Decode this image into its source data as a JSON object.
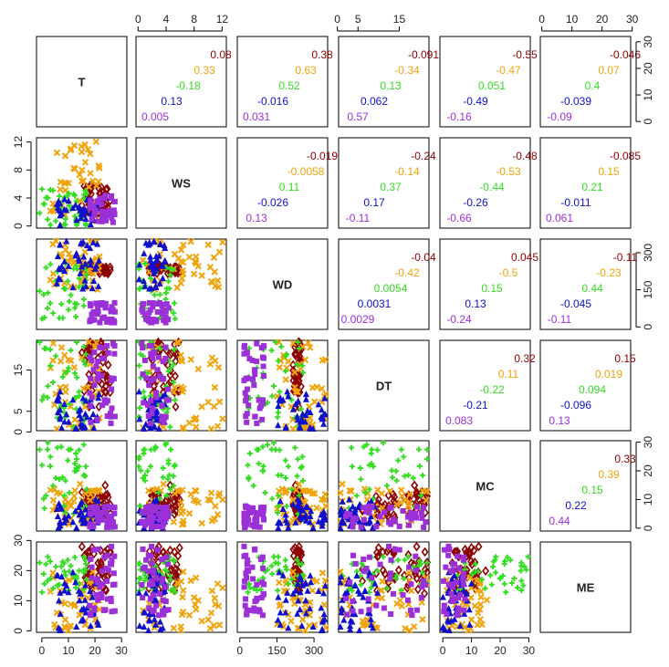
{
  "chart_data": {
    "type": "scatter-matrix",
    "variables": [
      "T",
      "WS",
      "WD",
      "DT",
      "MC",
      "ME"
    ],
    "axis_ranges": {
      "T": [
        -2,
        32
      ],
      "WS": [
        -0.3,
        12.6
      ],
      "WD": [
        -10,
        355
      ],
      "DT": [
        0.3,
        22.2
      ],
      "MC": [
        -1,
        30.5
      ],
      "ME": [
        -0.5,
        29.5
      ]
    },
    "ticks": {
      "T": {
        "values": [
          0,
          10,
          20,
          30
        ],
        "labels": [
          "0",
          "10",
          "20",
          "30"
        ]
      },
      "WS": {
        "values": [
          0,
          4,
          8,
          12
        ],
        "labels": [
          "0",
          "4",
          "8",
          "12"
        ]
      },
      "WD": {
        "values": [
          0,
          150,
          300
        ],
        "labels": [
          "0",
          "150",
          "300"
        ]
      },
      "DT": {
        "values": [
          0,
          5,
          15
        ],
        "labels": [
          "0",
          "5",
          "15"
        ]
      },
      "MC": {
        "values": [
          0,
          10,
          20,
          30
        ],
        "labels": [
          "0",
          "10",
          "20",
          "30"
        ]
      },
      "ME": {
        "values": [
          0,
          10,
          20,
          30
        ],
        "labels": [
          "0",
          "10",
          "20",
          "30"
        ]
      }
    },
    "groups": [
      {
        "color": "#8b0000",
        "marker": "diamond-open"
      },
      {
        "color": "#f0a30a",
        "marker": "x"
      },
      {
        "color": "#33dd22",
        "marker": "plus"
      },
      {
        "color": "#1010cc",
        "marker": "triangle"
      },
      {
        "color": "#9b30d9",
        "marker": "square"
      }
    ],
    "correlations": [
      {
        "row": 0,
        "col": 1,
        "values": [
          "0.08",
          "0.33",
          "-0.18",
          "0.13",
          "0.005"
        ]
      },
      {
        "row": 0,
        "col": 2,
        "values": [
          "0.38",
          "0.63",
          "0.52",
          "-0.016",
          "0.031"
        ]
      },
      {
        "row": 0,
        "col": 3,
        "values": [
          "-0.091",
          "-0.34",
          "0.13",
          "0.062",
          "0.57"
        ]
      },
      {
        "row": 0,
        "col": 4,
        "values": [
          "-0.55",
          "-0.47",
          "0.051",
          "-0.49",
          "-0.16"
        ]
      },
      {
        "row": 0,
        "col": 5,
        "values": [
          "-0.046",
          "0.07",
          "0.4",
          "-0.039",
          "-0.09"
        ]
      },
      {
        "row": 1,
        "col": 2,
        "values": [
          "-0.019",
          "-0.0058",
          "0.11",
          "-0.026",
          "0.13"
        ]
      },
      {
        "row": 1,
        "col": 3,
        "values": [
          "-0.24",
          "-0.14",
          "0.37",
          "0.17",
          "-0.11"
        ]
      },
      {
        "row": 1,
        "col": 4,
        "values": [
          "-0.48",
          "-0.53",
          "-0.44",
          "-0.26",
          "-0.66"
        ]
      },
      {
        "row": 1,
        "col": 5,
        "values": [
          "-0.085",
          "0.15",
          "0.21",
          "-0.011",
          "0.061"
        ]
      },
      {
        "row": 2,
        "col": 3,
        "values": [
          "-0.04",
          "-0.42",
          "0.0054",
          "0.0031",
          "0.0029"
        ]
      },
      {
        "row": 2,
        "col": 4,
        "values": [
          "0.045",
          "-0.5",
          "0.15",
          "0.13",
          "-0.24"
        ]
      },
      {
        "row": 2,
        "col": 5,
        "values": [
          "-0.11",
          "-0.23",
          "0.44",
          "-0.045",
          "-0.11"
        ]
      },
      {
        "row": 3,
        "col": 4,
        "values": [
          "0.32",
          "0.11",
          "-0.22",
          "-0.21",
          "0.083"
        ]
      },
      {
        "row": 3,
        "col": 5,
        "values": [
          "0.15",
          "0.019",
          "0.094",
          "-0.096",
          "0.13"
        ]
      },
      {
        "row": 4,
        "col": 5,
        "values": [
          "0.33",
          "0.39",
          "0.15",
          "0.22",
          "0.44"
        ]
      }
    ],
    "points": [
      {
        "group": 0,
        "n": 45,
        "T": [
          15,
          26
        ],
        "WS": [
          1.5,
          6
        ],
        "WD": [
          215,
          250
        ],
        "DT": [
          6,
          22
        ],
        "MC": [
          3,
          15
        ],
        "ME": [
          12,
          28
        ]
      },
      {
        "group": 1,
        "n": 45,
        "T": [
          3,
          22
        ],
        "WS": [
          0.5,
          12.5
        ],
        "WD": [
          150,
          350
        ],
        "DT": [
          0.5,
          22
        ],
        "MC": [
          1,
          16
        ],
        "ME": [
          0,
          20
        ]
      },
      {
        "group": 2,
        "n": 40,
        "T": [
          -1,
          18
        ],
        "WS": [
          0,
          6
        ],
        "WD": [
          30,
          260
        ],
        "DT": [
          1,
          22
        ],
        "MC": [
          5,
          30
        ],
        "ME": [
          12,
          25
        ]
      },
      {
        "group": 3,
        "n": 40,
        "T": [
          5,
          22
        ],
        "WS": [
          0,
          4
        ],
        "WD": [
          150,
          350
        ],
        "DT": [
          0.5,
          10
        ],
        "MC": [
          0,
          10
        ],
        "ME": [
          0,
          20
        ]
      },
      {
        "group": 4,
        "n": 40,
        "T": [
          18,
          28
        ],
        "WS": [
          0.5,
          4.5
        ],
        "WD": [
          15,
          100
        ],
        "DT": [
          2,
          22
        ],
        "MC": [
          0,
          8
        ],
        "ME": [
          5,
          29
        ]
      }
    ]
  }
}
